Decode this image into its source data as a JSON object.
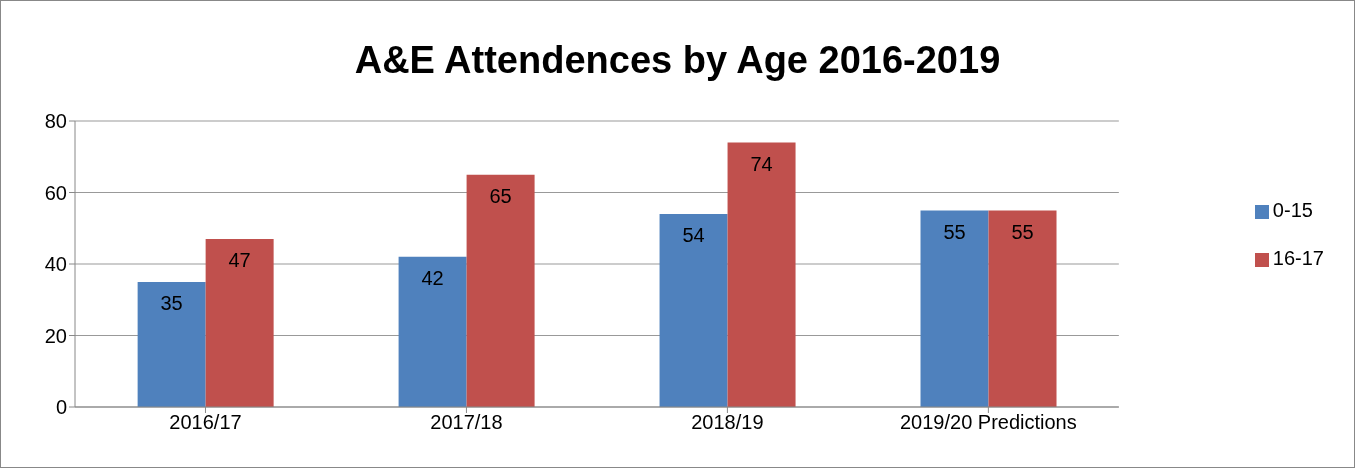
{
  "chart_data": {
    "type": "bar",
    "title": "A&E Attendences by Age 2016-2019",
    "categories": [
      "2016/17",
      "2017/18",
      "2018/19",
      "2019/20 Predictions"
    ],
    "series": [
      {
        "name": "0-15",
        "color": "#4f81bd",
        "values": [
          35,
          42,
          54,
          55
        ]
      },
      {
        "name": "16-17",
        "color": "#c0504d",
        "values": [
          47,
          65,
          74,
          55
        ]
      }
    ],
    "ylim": [
      0,
      80
    ],
    "yticks": [
      0,
      20,
      40,
      60,
      80
    ],
    "grid": "y",
    "legend": "right",
    "data_labels": true
  }
}
